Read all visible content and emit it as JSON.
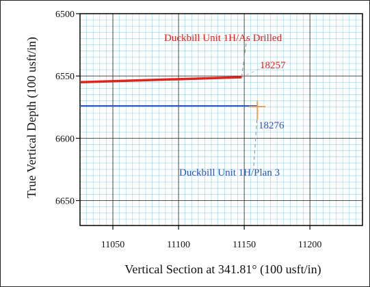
{
  "chart_data": {
    "type": "line",
    "xlabel": "Vertical Section at 341.81° (100 usft/in)",
    "ylabel": "True Vertical Depth (100 usft/in)",
    "xlim": [
      11025,
      11240
    ],
    "ylim": [
      6500,
      6670
    ],
    "y_inverted": true,
    "grid": true,
    "x_ticks": [
      11050,
      11100,
      11150,
      11200
    ],
    "y_ticks": [
      6500,
      6550,
      6600,
      6650
    ],
    "series": [
      {
        "name": "Duckbill Unit 1H/As Drilled",
        "color": "#e0231b",
        "x": [
          11025,
          11148
        ],
        "y": [
          6555,
          6551
        ]
      },
      {
        "name": "Duckbill Unit 1H/Plan 3",
        "color": "#2a52be",
        "x": [
          11025,
          11160
        ],
        "y": [
          6574,
          6574
        ]
      }
    ],
    "annotations": [
      {
        "text": "Duckbill Unit 1H/As Drilled",
        "color": "#e0231b"
      },
      {
        "text": "18257",
        "color": "#e0231b"
      },
      {
        "text": "18276",
        "color": "#2a52be"
      },
      {
        "text": "Duckbill Unit 1H/Plan 3",
        "color": "#2a52be"
      }
    ]
  }
}
